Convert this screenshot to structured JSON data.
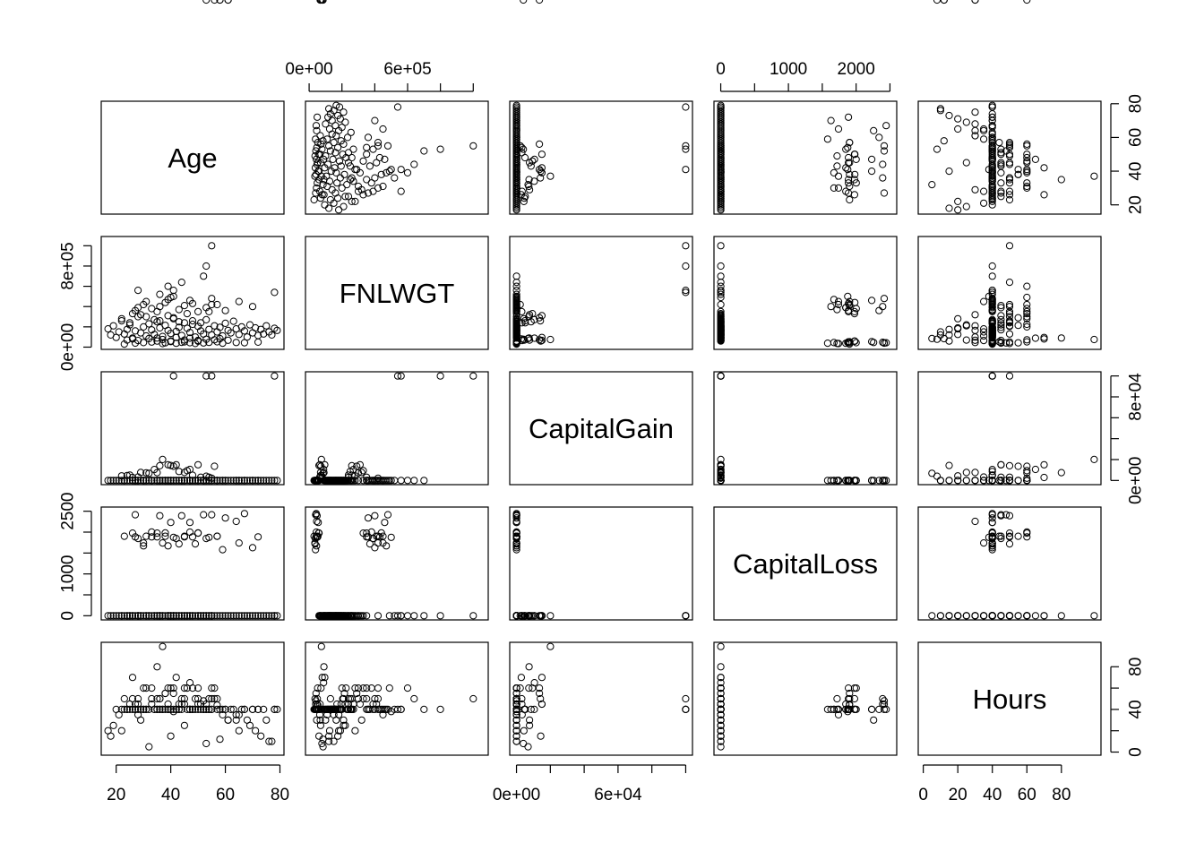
{
  "chart_data": {
    "type": "scatter",
    "kind": "scatterplot-matrix",
    "variables": [
      "Age",
      "FNLWGT",
      "CapitalGain",
      "CapitalLoss",
      "Hours"
    ],
    "ranges": {
      "Age": [
        17,
        79
      ],
      "FNLWGT": [
        19000,
        1050000
      ],
      "CapitalGain": [
        0,
        100000
      ],
      "CapitalLoss": [
        0,
        2500
      ],
      "Hours": [
        1,
        99
      ]
    },
    "axes": {
      "Age": {
        "ticks": [
          20,
          40,
          60,
          80
        ],
        "labels": [
          "20",
          "40",
          "60",
          "80"
        ],
        "minor": []
      },
      "FNLWGT": {
        "ticks": [
          0,
          800000
        ],
        "labels": [
          "0e+00",
          "8e+05"
        ],
        "minor": [
          200000,
          400000,
          600000,
          1000000
        ]
      },
      "FNLWGT_top": {
        "ticks": [
          0,
          600000
        ],
        "labels": [
          "0e+00",
          "6e+05"
        ],
        "minor": [
          200000,
          400000,
          800000,
          1000000
        ]
      },
      "CapitalGain": {
        "ticks": [
          0,
          80000
        ],
        "labels": [
          "0e+00",
          "8e+04"
        ],
        "minor": [
          20000,
          40000,
          60000,
          100000
        ]
      },
      "CapitalGain_bottom": {
        "ticks": [
          0,
          60000
        ],
        "labels": [
          "0e+00",
          "6e+04"
        ],
        "minor": [
          20000,
          40000,
          80000,
          100000
        ]
      },
      "CapitalLoss": {
        "ticks": [
          0,
          1000,
          2500
        ],
        "labels": [
          "0",
          "1000",
          "2500"
        ],
        "minor": [
          500,
          1500,
          2000
        ]
      },
      "CapitalLoss_top": {
        "ticks": [
          0,
          1000,
          2000
        ],
        "labels": [
          "0",
          "1000",
          "2000"
        ],
        "minor": [
          500,
          1500,
          2500
        ]
      },
      "Hours": {
        "ticks": [
          0,
          20,
          40,
          60,
          80
        ],
        "labels": [
          "0",
          "20",
          "40",
          "60",
          "80"
        ],
        "minor": []
      },
      "Hours_right": {
        "ticks": [
          0,
          40,
          80
        ],
        "labels": [
          "0",
          "40",
          "80"
        ],
        "minor": [
          20,
          60
        ]
      }
    },
    "points": {
      "Age": [
        17,
        18,
        19,
        20,
        21,
        22,
        23,
        24,
        25,
        26,
        27,
        28,
        29,
        30,
        31,
        32,
        33,
        34,
        35,
        36,
        37,
        38,
        39,
        40,
        41,
        42,
        43,
        44,
        45,
        46,
        47,
        48,
        49,
        50,
        51,
        52,
        53,
        54,
        55,
        56,
        57,
        58,
        59,
        60,
        61,
        62,
        63,
        64,
        65,
        66,
        67,
        68,
        69,
        70,
        71,
        72,
        73,
        74,
        75,
        76,
        77,
        78,
        79,
        23,
        27,
        30,
        33,
        35,
        37,
        38,
        40,
        42,
        44,
        45,
        47,
        49,
        50,
        52,
        54,
        57,
        59,
        64,
        67,
        72,
        26,
        27,
        28,
        30,
        31,
        33,
        35,
        36,
        38,
        39,
        41,
        43,
        45,
        47,
        48,
        50,
        53,
        55,
        57,
        60,
        65,
        70,
        28,
        39,
        44,
        52,
        36,
        40,
        55,
        78,
        41,
        53,
        55,
        54,
        22,
        25,
        29,
        31,
        34,
        36,
        39,
        41,
        43,
        46,
        48,
        51,
        24,
        26,
        28,
        32,
        35,
        37,
        40,
        42,
        45,
        47,
        50,
        53,
        56,
        58,
        61
      ],
      "FNLWGT": [
        180000,
        120000,
        210000,
        95000,
        150000,
        260000,
        130000,
        175000,
        220000,
        90000,
        160000,
        300000,
        140000,
        200000,
        110000,
        230000,
        170000,
        125000,
        250000,
        190000,
        105000,
        215000,
        165000,
        135000,
        280000,
        155000,
        195000,
        115000,
        240000,
        185000,
        145000,
        225000,
        100000,
        205000,
        160000,
        130000,
        270000,
        175000,
        120000,
        210000,
        150000,
        195000,
        110000,
        235000,
        165000,
        140000,
        255000,
        180000,
        125000,
        200000,
        160000,
        100000,
        220000,
        140000,
        190000,
        115000,
        175000,
        130000,
        210000,
        150000,
        120000,
        185000,
        165000,
        30000,
        40000,
        45000,
        50000,
        60000,
        35000,
        42000,
        55000,
        38000,
        48000,
        52000,
        44000,
        36000,
        58000,
        41000,
        47000,
        53000,
        39000,
        46000,
        43000,
        49000,
        330000,
        360000,
        390000,
        420000,
        450000,
        380000,
        350000,
        400000,
        440000,
        470000,
        500000,
        370000,
        410000,
        460000,
        430000,
        350000,
        390000,
        480000,
        420000,
        360000,
        450000,
        400000,
        560000,
        600000,
        640000,
        700000,
        520000,
        490000,
        1000000,
        540000,
        560000,
        800000,
        420000,
        350000,
        280000,
        240000,
        320000,
        300000,
        270000,
        260000,
        310000,
        290000,
        250000,
        330000,
        260000,
        240000,
        70000,
        80000,
        65000,
        85000,
        90000,
        75000,
        60000,
        95000,
        70000,
        88000,
        66000,
        78000,
        72000,
        84000,
        68000
      ],
      "CapitalGain": [
        0,
        0,
        0,
        0,
        0,
        0,
        0,
        0,
        0,
        0,
        0,
        0,
        0,
        0,
        0,
        0,
        0,
        0,
        0,
        0,
        0,
        0,
        0,
        0,
        0,
        0,
        0,
        0,
        0,
        0,
        0,
        0,
        0,
        0,
        0,
        0,
        0,
        0,
        0,
        0,
        0,
        0,
        0,
        0,
        0,
        0,
        0,
        0,
        0,
        0,
        0,
        0,
        0,
        0,
        0,
        0,
        0,
        0,
        0,
        0,
        0,
        0,
        0,
        0,
        0,
        0,
        0,
        0,
        0,
        0,
        0,
        0,
        0,
        0,
        0,
        0,
        0,
        0,
        0,
        0,
        0,
        0,
        0,
        0,
        0,
        0,
        0,
        0,
        0,
        0,
        0,
        0,
        0,
        0,
        0,
        0,
        0,
        0,
        0,
        0,
        0,
        0,
        0,
        0,
        0,
        0,
        0,
        0,
        0,
        0,
        0,
        0,
        99999,
        99999,
        99999,
        99999,
        2174,
        3103,
        4386,
        5178,
        7688,
        7298,
        10520,
        14084,
        15024,
        13550,
        8614,
        9386,
        5013,
        3137,
        4650,
        2829,
        3325,
        6849,
        7443,
        20051,
        14344,
        15024,
        7688,
        10605,
        15024,
        4064,
        13550
      ],
      "CapitalLoss": [
        0,
        0,
        0,
        0,
        0,
        0,
        0,
        0,
        0,
        0,
        0,
        0,
        0,
        0,
        0,
        0,
        0,
        0,
        0,
        0,
        0,
        0,
        0,
        0,
        0,
        0,
        0,
        0,
        0,
        0,
        0,
        0,
        0,
        0,
        0,
        0,
        0,
        0,
        0,
        0,
        0,
        0,
        0,
        0,
        0,
        0,
        0,
        0,
        0,
        0,
        0,
        0,
        0,
        0,
        0,
        0,
        0,
        0,
        0,
        0,
        0,
        0,
        0,
        1902,
        2415,
        1672,
        1887,
        1977,
        1740,
        1902,
        2231,
        1848,
        2392,
        1887,
        2001,
        1719,
        1980,
        2415,
        1876,
        1902,
        1579,
        2258,
        2444,
        1887,
        1977,
        1887,
        1848,
        1740,
        1902,
        2002,
        1887,
        2392,
        1980,
        1672,
        1876,
        1719,
        1902,
        2231,
        1887,
        1977,
        1848,
        2415,
        1902,
        2339,
        1740,
        1628,
        0,
        0,
        0,
        0,
        0,
        0,
        0,
        0,
        0,
        0,
        0,
        0,
        0,
        0,
        0,
        0,
        0,
        0,
        0,
        0,
        0,
        0,
        0,
        0,
        0,
        0,
        0,
        0,
        0,
        0,
        0,
        0,
        0,
        0,
        0
      ],
      "Hours": [
        20,
        15,
        25,
        40,
        35,
        40,
        50,
        40,
        45,
        40,
        40,
        50,
        40,
        60,
        40,
        40,
        45,
        40,
        50,
        40,
        40,
        55,
        40,
        40,
        60,
        40,
        45,
        40,
        50,
        40,
        40,
        60,
        40,
        50,
        40,
        40,
        45,
        40,
        40,
        50,
        40,
        40,
        35,
        40,
        30,
        40,
        40,
        35,
        20,
        40,
        40,
        30,
        25,
        40,
        20,
        40,
        15,
        40,
        30,
        10,
        10,
        40,
        40,
        40,
        45,
        40,
        50,
        40,
        40,
        55,
        40,
        40,
        45,
        60,
        40,
        50,
        40,
        48,
        40,
        44,
        40,
        30,
        40,
        40,
        50,
        40,
        45,
        40,
        40,
        60,
        40,
        50,
        40,
        40,
        38,
        40,
        45,
        40,
        40,
        60,
        40,
        40,
        50,
        40,
        35,
        40,
        40,
        60,
        50,
        40,
        40,
        60,
        50,
        40,
        40,
        40,
        60,
        50,
        20,
        40,
        30,
        60,
        40,
        50,
        45,
        55,
        40,
        60,
        40,
        45,
        40,
        70,
        35,
        5,
        80,
        99,
        15,
        70,
        25,
        65,
        45,
        8,
        60,
        12,
        30
      ]
    }
  }
}
